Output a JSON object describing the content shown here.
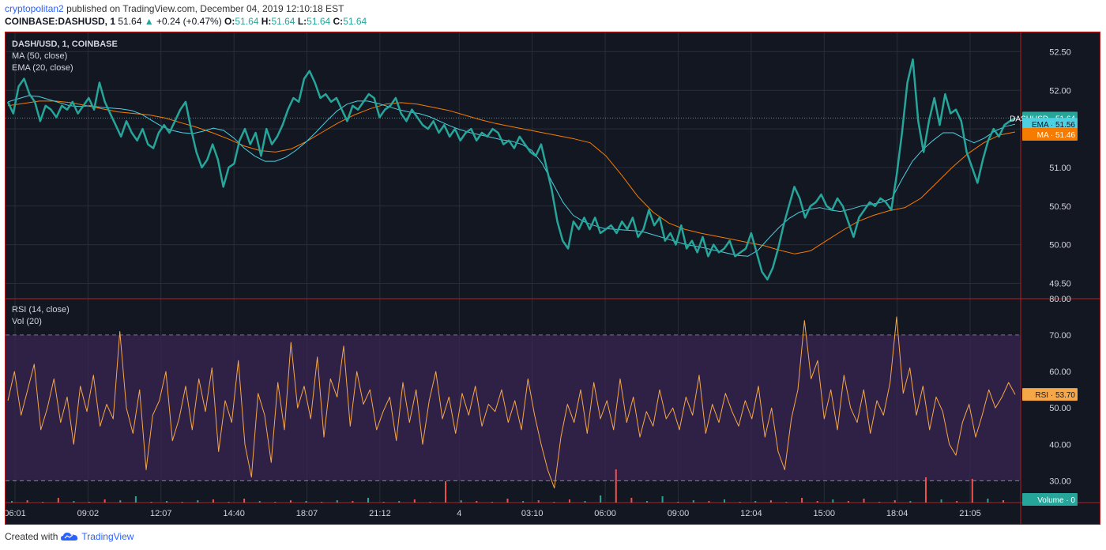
{
  "header": {
    "author": "cryptopolitan2",
    "published": "published on TradingView.com, December 04, 2019 12:10:18 EST",
    "symbol": "COINBASE:DASHUSD, 1",
    "last": "51.64",
    "arrow": "▲",
    "change": "+0.24 (+0.47%)",
    "o_label": "O:",
    "o": "51.64",
    "h_label": "H:",
    "h": "51.64",
    "l_label": "L:",
    "l": "51.64",
    "c_label": "C:",
    "c": "51.64"
  },
  "legend": {
    "price_title": "DASH/USD, 1, COINBASE",
    "ma": "MA (50, close)",
    "ema": "EMA (20, close)",
    "rsi": "RSI (14, close)",
    "vol": "Vol (20)"
  },
  "footer": {
    "created": "Created with",
    "brand": "TradingView"
  },
  "colors": {
    "background": "#131722",
    "price": "#26a69a",
    "ema": "#4dd0e1",
    "ma": "#f57c00",
    "rsi": "#f6a848",
    "rsi_band": "#3a2452",
    "vol_up": "#26a69a",
    "vol_down": "#ef5350",
    "frame": "#b71c1c"
  },
  "chart_data": [
    {
      "type": "line",
      "title": "DASH/USD, 1, COINBASE",
      "x_ticks": [
        "06:01",
        "09:02",
        "12:07",
        "14:40",
        "18:07",
        "21:12",
        "4",
        "03:10",
        "06:00",
        "09:00",
        "12:04",
        "15:00",
        "18:04",
        "21:05"
      ],
      "y_ticks": [
        "52.50",
        "52.00",
        "51.50",
        "51.00",
        "50.50",
        "50.00",
        "49.50"
      ],
      "ylim": [
        49.3,
        52.75
      ],
      "grid": true,
      "series": [
        {
          "name": "DASHUSD",
          "label_value": "51.64",
          "values": [
            51.85,
            51.7,
            52.05,
            52.15,
            51.95,
            51.85,
            51.6,
            51.8,
            51.75,
            51.65,
            51.8,
            51.75,
            51.85,
            51.7,
            51.8,
            51.9,
            51.75,
            52.1,
            51.85,
            51.7,
            51.55,
            51.4,
            51.6,
            51.45,
            51.35,
            51.5,
            51.3,
            51.25,
            51.45,
            51.55,
            51.45,
            51.6,
            51.75,
            51.85,
            51.5,
            51.2,
            51.0,
            51.1,
            51.3,
            51.1,
            50.75,
            51.0,
            51.05,
            51.35,
            51.5,
            51.3,
            51.45,
            51.15,
            51.5,
            51.3,
            51.4,
            51.55,
            51.75,
            51.9,
            51.85,
            52.15,
            52.25,
            52.1,
            51.9,
            51.95,
            51.85,
            51.9,
            51.75,
            51.6,
            51.8,
            51.75,
            51.85,
            51.95,
            51.9,
            51.65,
            51.75,
            51.8,
            51.9,
            51.7,
            51.6,
            51.75,
            51.65,
            51.55,
            51.5,
            51.6,
            51.45,
            51.55,
            51.4,
            51.5,
            51.35,
            51.45,
            51.5,
            51.35,
            51.45,
            51.4,
            51.5,
            51.45,
            51.3,
            51.35,
            51.25,
            51.4,
            51.3,
            51.2,
            51.15,
            51.3,
            51.0,
            50.7,
            50.3,
            50.05,
            49.95,
            50.3,
            50.2,
            50.35,
            50.2,
            50.35,
            50.15,
            50.2,
            50.25,
            50.15,
            50.3,
            50.2,
            50.35,
            50.1,
            50.2,
            50.45,
            50.25,
            50.35,
            50.05,
            50.15,
            50.0,
            50.25,
            49.95,
            50.05,
            49.9,
            50.1,
            49.85,
            50.0,
            49.9,
            49.95,
            50.05,
            49.85,
            49.9,
            49.95,
            50.15,
            49.9,
            49.65,
            49.55,
            49.7,
            49.95,
            50.25,
            50.5,
            50.75,
            50.6,
            50.35,
            50.5,
            50.55,
            50.65,
            50.5,
            50.45,
            50.6,
            50.5,
            50.3,
            50.1,
            50.35,
            50.45,
            50.55,
            50.5,
            50.6,
            50.55,
            50.45,
            50.9,
            51.45,
            52.1,
            52.4,
            51.6,
            51.2,
            51.6,
            51.9,
            51.55,
            51.95,
            51.7,
            51.75,
            51.6,
            51.2,
            51.0,
            50.8,
            51.1,
            51.35,
            51.5,
            51.4,
            51.55,
            51.6,
            51.64
          ]
        },
        {
          "name": "EMA",
          "label_value": "51.56",
          "values": [
            51.85,
            51.89,
            51.93,
            51.92,
            51.88,
            51.84,
            51.8,
            51.79,
            51.8,
            51.78,
            51.77,
            51.76,
            51.74,
            51.69,
            51.61,
            51.53,
            51.48,
            51.45,
            51.44,
            51.47,
            51.51,
            51.48,
            51.38,
            51.25,
            51.15,
            51.08,
            51.08,
            51.13,
            51.22,
            51.33,
            51.46,
            51.6,
            51.73,
            51.82,
            51.86,
            51.86,
            51.83,
            51.79,
            51.75,
            51.72,
            51.7,
            51.66,
            51.6,
            51.54,
            51.49,
            51.45,
            51.42,
            51.39,
            51.36,
            51.34,
            51.3,
            51.22,
            51.05,
            50.8,
            50.55,
            50.38,
            50.3,
            50.25,
            50.21,
            50.2,
            50.19,
            50.18,
            50.16,
            50.12,
            50.08,
            50.04,
            50.0,
            49.98,
            49.95,
            49.92,
            49.89,
            49.86,
            49.85,
            49.93,
            50.08,
            50.22,
            50.34,
            50.42,
            50.46,
            50.48,
            50.45,
            50.43,
            50.46,
            50.5,
            50.52,
            50.55,
            50.6,
            50.85,
            51.08,
            51.23,
            51.35,
            51.45,
            51.45,
            51.38,
            51.32,
            51.38,
            51.47,
            51.53,
            51.56
          ]
        },
        {
          "name": "MA",
          "label_value": "51.46",
          "values": [
            51.8,
            51.83,
            51.86,
            51.86,
            51.84,
            51.8,
            51.76,
            51.72,
            51.7,
            51.68,
            51.64,
            51.58,
            51.52,
            51.45,
            51.37,
            51.28,
            51.22,
            51.2,
            51.24,
            51.34,
            51.46,
            51.58,
            51.68,
            51.76,
            51.82,
            51.84,
            51.82,
            51.78,
            51.74,
            51.68,
            51.62,
            51.57,
            51.53,
            51.49,
            51.45,
            51.41,
            51.37,
            51.32,
            51.15,
            50.9,
            50.63,
            50.42,
            50.28,
            50.2,
            50.15,
            50.11,
            50.07,
            50.03,
            49.99,
            49.93,
            49.88,
            49.92,
            50.05,
            50.18,
            50.3,
            50.38,
            50.44,
            50.48,
            50.6,
            50.8,
            51.0,
            51.18,
            51.32,
            51.42,
            51.46
          ]
        }
      ],
      "price_axis_marker": "DASHUSD"
    },
    {
      "type": "line",
      "title": "RSI (14, close)",
      "x_ticks": [
        "06:01",
        "09:02",
        "12:07",
        "14:40",
        "18:07",
        "21:12",
        "4",
        "03:10",
        "06:00",
        "09:00",
        "12:04",
        "15:00",
        "18:04",
        "21:05"
      ],
      "y_ticks": [
        "80.00",
        "70.00",
        "60.00",
        "50.00",
        "40.00",
        "30.00"
      ],
      "ylim": [
        24,
        80
      ],
      "band": [
        30,
        70
      ],
      "series": [
        {
          "name": "RSI",
          "label_value": "53.70",
          "values": [
            52,
            60,
            48,
            55,
            62,
            44,
            50,
            58,
            46,
            53,
            40,
            56,
            49,
            59,
            45,
            51,
            47,
            71,
            50,
            43,
            55,
            33,
            48,
            52,
            60,
            41,
            47,
            56,
            44,
            58,
            49,
            61,
            38,
            52,
            46,
            63,
            40,
            31,
            54,
            48,
            35,
            57,
            44,
            68,
            50,
            56,
            47,
            64,
            42,
            58,
            53,
            67,
            45,
            60,
            51,
            55,
            44,
            49,
            53,
            41,
            57,
            46,
            55,
            40,
            52,
            60,
            47,
            53,
            43,
            54,
            48,
            56,
            45,
            51,
            49,
            55,
            46,
            52,
            44,
            58,
            48,
            40,
            33,
            28,
            42,
            51,
            46,
            55,
            43,
            57,
            47,
            52,
            44,
            58,
            46,
            53,
            42,
            49,
            45,
            55,
            47,
            50,
            44,
            53,
            48,
            59,
            43,
            51,
            46,
            54,
            49,
            45,
            52,
            47,
            56,
            42,
            50,
            38,
            33,
            47,
            55,
            74,
            58,
            63,
            47,
            55,
            44,
            59,
            50,
            46,
            55,
            43,
            52,
            48,
            57,
            75,
            54,
            61,
            48,
            56,
            44,
            53,
            49,
            40,
            37,
            46,
            51,
            42,
            48,
            55,
            50,
            53,
            57,
            53.7
          ]
        }
      ]
    },
    {
      "type": "bar",
      "title": "Vol (20)",
      "label_value": "0",
      "label_name": "Volume",
      "values": [
        0.2,
        0.3,
        0.1,
        0.6,
        0.2,
        0.1,
        0.4,
        0.3,
        0.8,
        0.1,
        0.2,
        0.1,
        0.3,
        0.4,
        0.1,
        0.5,
        0.2,
        0.1,
        0.3,
        0.2,
        0.1,
        0.3,
        0.2,
        0.6,
        0.1,
        0.2,
        0.4,
        0.1,
        2.7,
        0.3,
        0.2,
        0.1,
        0.5,
        0.2,
        0.3,
        0.1,
        0.4,
        0.2,
        0.9,
        4.2,
        0.6,
        0.2,
        0.8,
        0.1,
        0.3,
        0.2,
        0.4,
        0.1,
        0.2,
        0.3,
        0.1,
        0.6,
        0.2,
        0.4,
        0.2,
        0.5,
        0.1,
        0.3,
        0.2,
        3.2,
        0.4,
        0.2,
        3.0,
        0.5,
        0.3
      ],
      "directions": [
        "u",
        "d",
        "u",
        "d",
        "u",
        "d",
        "d",
        "u",
        "u",
        "d",
        "u",
        "d",
        "u",
        "d",
        "u",
        "d",
        "u",
        "d",
        "d",
        "u",
        "d",
        "u",
        "d",
        "u",
        "d",
        "u",
        "d",
        "u",
        "d",
        "u",
        "d",
        "u",
        "d",
        "u",
        "d",
        "u",
        "d",
        "u",
        "u",
        "d",
        "d",
        "u",
        "u",
        "d",
        "u",
        "d",
        "u",
        "d",
        "u",
        "d",
        "u",
        "d",
        "d",
        "u",
        "d",
        "d",
        "u",
        "d",
        "u",
        "d",
        "u",
        "d",
        "d",
        "u",
        "d"
      ]
    }
  ]
}
